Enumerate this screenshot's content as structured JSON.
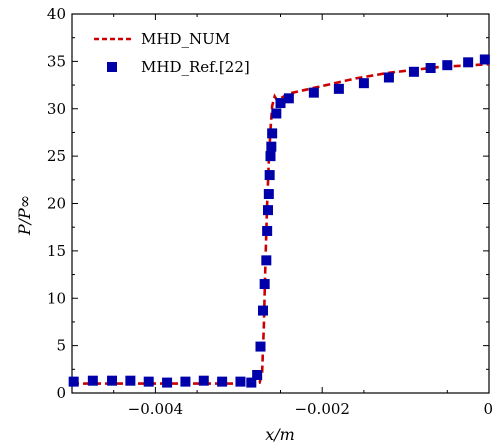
{
  "chart_data": {
    "type": "line",
    "xlabel": "x/m",
    "ylabel": "P/P∞",
    "xlim": [
      -0.005,
      0
    ],
    "ylim": [
      0,
      40
    ],
    "x_ticks": [
      -0.004,
      -0.002,
      0
    ],
    "x_tick_labels": [
      "−0.004",
      "−0.002",
      "0"
    ],
    "y_ticks": [
      0,
      5,
      10,
      15,
      20,
      25,
      30,
      35,
      40
    ],
    "y_tick_labels": [
      "0",
      "5",
      "10",
      "15",
      "20",
      "25",
      "30",
      "35",
      "40"
    ],
    "grid": false,
    "legend_position": "top-left",
    "colors": {
      "num": "#cc0000",
      "ref": "#0000aa"
    },
    "series": [
      {
        "name": "MHD_NUM",
        "style": "dashed-line",
        "x": [
          -0.005,
          -0.0045,
          -0.004,
          -0.0035,
          -0.003,
          -0.00285,
          -0.00275,
          -0.00272,
          -0.0027,
          -0.00268,
          -0.00266,
          -0.00264,
          -0.00262,
          -0.0026,
          -0.00257,
          -0.00254,
          -0.0025,
          -0.0024,
          -0.0022,
          -0.002,
          -0.0018,
          -0.0016,
          -0.0014,
          -0.0012,
          -0.001,
          -0.0008,
          -0.0006,
          -0.0004,
          -0.0002,
          0
        ],
        "y": [
          1.0,
          1.0,
          1.0,
          1.0,
          1.0,
          1.0,
          1.1,
          2.2,
          7.0,
          14.0,
          20.0,
          24.5,
          27.8,
          30.3,
          31.3,
          30.9,
          31.1,
          31.6,
          32.0,
          32.4,
          32.8,
          33.2,
          33.5,
          33.8,
          34.0,
          34.2,
          34.4,
          34.5,
          34.6,
          34.7
        ]
      },
      {
        "name": "MHD_Ref.[22]",
        "style": "square-markers",
        "x": [
          -0.00498,
          -0.00475,
          -0.00452,
          -0.0043,
          -0.00408,
          -0.00386,
          -0.00364,
          -0.00342,
          -0.0032,
          -0.00298,
          -0.00285,
          -0.00278,
          -0.00274,
          -0.00271,
          -0.00269,
          -0.00267,
          -0.00266,
          -0.00265,
          -0.00264,
          -0.00263,
          -0.00262,
          -0.00261,
          -0.0026,
          -0.00255,
          -0.0025,
          -0.0024,
          -0.0021,
          -0.0018,
          -0.0015,
          -0.0012,
          -0.0009,
          -0.0007,
          -0.0005,
          -0.00025,
          -5e-05
        ],
        "y": [
          1.2,
          1.3,
          1.3,
          1.3,
          1.2,
          1.1,
          1.2,
          1.3,
          1.2,
          1.2,
          1.1,
          1.9,
          4.9,
          8.7,
          11.5,
          14.0,
          17.1,
          19.3,
          21.0,
          23.0,
          25.0,
          26.0,
          27.4,
          29.5,
          30.6,
          31.1,
          31.7,
          32.1,
          32.7,
          33.3,
          33.9,
          34.3,
          34.6,
          34.9,
          35.2
        ]
      }
    ]
  }
}
